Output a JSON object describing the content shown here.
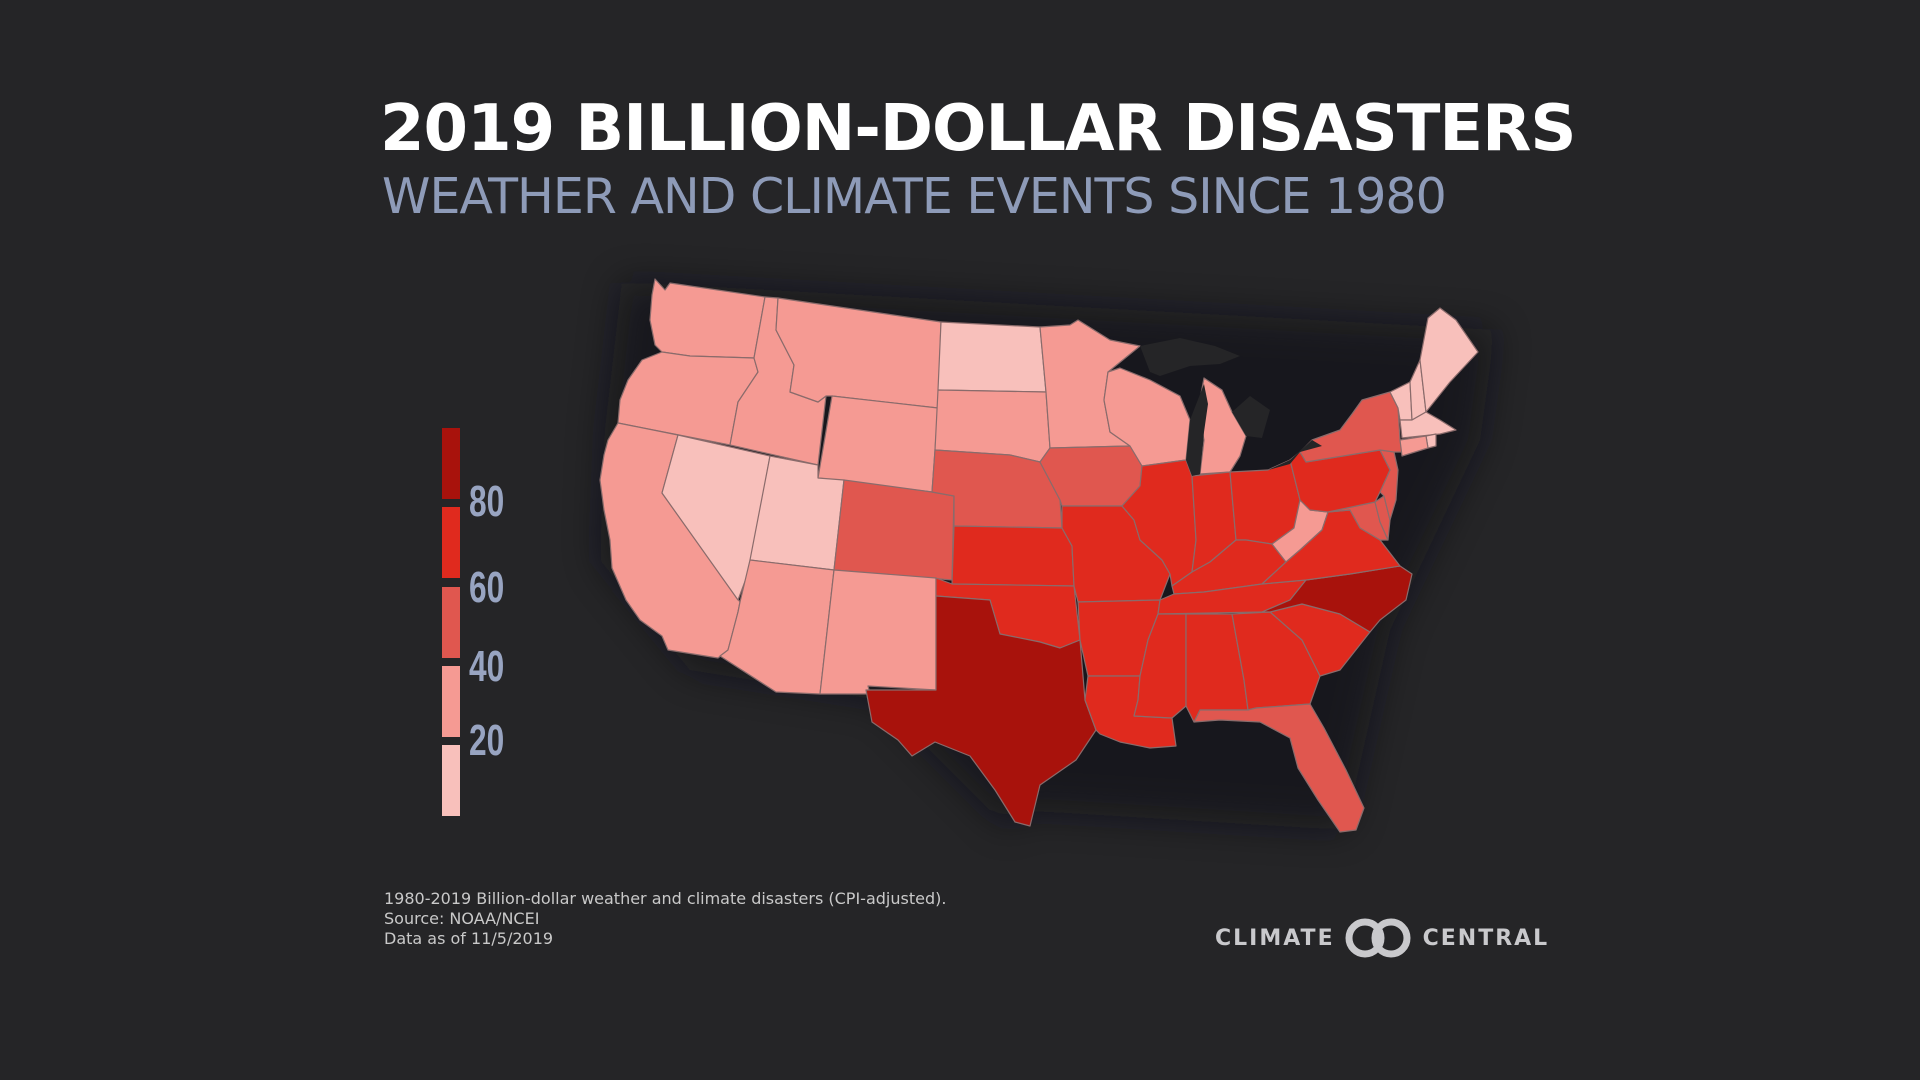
{
  "title": "2019 BILLION-DOLLAR DISASTERS",
  "subtitle": "WEATHER AND CLIMATE EVENTS SINCE 1980",
  "legend": {
    "ticks": [
      "80",
      "60",
      "40",
      "20"
    ],
    "colors": [
      "#a8120c",
      "#e02a1e",
      "#e0574f",
      "#f59a93",
      "#f8c0bb"
    ]
  },
  "state_colors": {
    "lightest": "#f8c0bb",
    "light": "#f59a93",
    "medium": "#e0574f",
    "dark": "#e02a1e",
    "darkest": "#a8120c",
    "border": "#8a6b6b"
  },
  "footnote": {
    "line1": "1980-2019 Billion-dollar weather and climate disasters (CPI-adjusted).",
    "line2": "Source: NOAA/NCEI",
    "line3": "Data as of 11/5/2019"
  },
  "brand": {
    "left": "CLIMATE",
    "right": "CENTRAL",
    "logo_icon": "linked-circles-icon"
  }
}
